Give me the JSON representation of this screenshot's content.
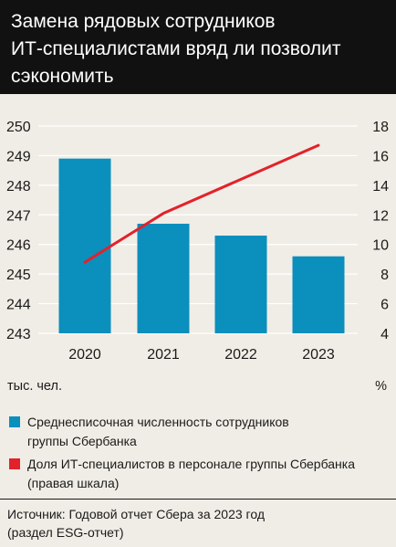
{
  "header": {
    "title_lines": [
      "Замена рядовых сотрудников",
      "ИТ-специалистами вряд ли позволит",
      "сэкономить"
    ]
  },
  "units": {
    "left": "тыс. чел.",
    "right": "%"
  },
  "legend": {
    "items": [
      {
        "lines": [
          "Среднесписочная численность сотрудников",
          "группы Сбербанка"
        ],
        "color": "#0b8fbd"
      },
      {
        "lines": [
          "Доля ИТ-специалистов в персонале группы Сбербанка",
          "(правая шкала)"
        ],
        "color": "#e2222b"
      }
    ]
  },
  "source": {
    "lines": [
      "Источник: Годовой отчет Сбера за 2023 год",
      "(раздел ESG-отчет)"
    ]
  },
  "chart_data": {
    "type": "bar",
    "categories": [
      "2020",
      "2021",
      "2022",
      "2023"
    ],
    "left_axis": {
      "ylim": [
        243,
        250
      ],
      "ticks": [
        "250",
        "249",
        "248",
        "247",
        "246",
        "245",
        "244",
        "243"
      ]
    },
    "right_axis": {
      "ylim": [
        4,
        18
      ],
      "ticks": [
        "18",
        "16",
        "14",
        "12",
        "10",
        "8",
        "6",
        "4"
      ]
    },
    "series": [
      {
        "type": "bar",
        "axis": "left",
        "values": [
          248.9,
          246.7,
          246.3,
          245.6
        ],
        "color": "#0b8fbd"
      },
      {
        "type": "line",
        "axis": "right",
        "values": [
          8.8,
          12.1,
          14.4,
          16.7
        ],
        "color": "#e2222b"
      }
    ],
    "grid": true
  }
}
